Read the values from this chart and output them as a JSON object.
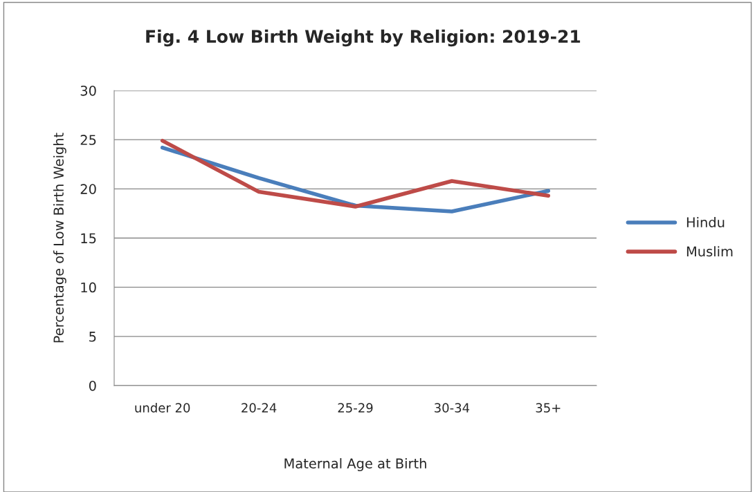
{
  "chart_data": {
    "type": "line",
    "title": "Fig. 4 Low Birth Weight by Religion: 2019-21",
    "xlabel": "Maternal Age at Birth",
    "ylabel": "Percentage of Low Birth Weight",
    "categories": [
      "under 20",
      "20-24",
      "25-29",
      "30-34",
      "35+"
    ],
    "series": [
      {
        "name": "Hindu",
        "color": "#4a7ebb",
        "values": [
          24.2,
          21.1,
          18.3,
          17.7,
          19.8
        ]
      },
      {
        "name": "Muslim",
        "color": "#be4b48",
        "values": [
          24.9,
          19.7,
          18.2,
          20.8,
          19.3
        ]
      }
    ],
    "ylim": [
      0,
      30
    ],
    "yticks": [
      0,
      5,
      10,
      15,
      20,
      25,
      30
    ],
    "grid": "y",
    "legend": "right",
    "marker": "none",
    "line_style": "solid"
  }
}
